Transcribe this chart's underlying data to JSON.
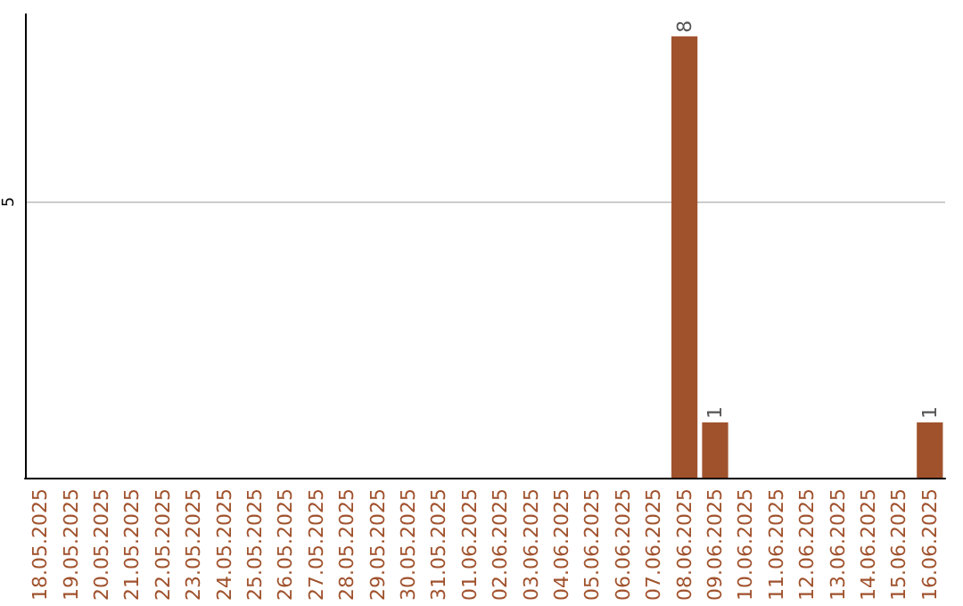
{
  "chart_data": {
    "type": "bar",
    "categories": [
      "18.05.2025",
      "19.05.2025",
      "20.05.2025",
      "21.05.2025",
      "22.05.2025",
      "23.05.2025",
      "24.05.2025",
      "25.05.2025",
      "26.05.2025",
      "27.05.2025",
      "28.05.2025",
      "29.05.2025",
      "30.05.2025",
      "31.05.2025",
      "01.06.2025",
      "02.06.2025",
      "03.06.2025",
      "04.06.2025",
      "05.06.2025",
      "06.06.2025",
      "07.06.2025",
      "08.06.2025",
      "09.06.2025",
      "10.06.2025",
      "11.06.2025",
      "12.06.2025",
      "13.06.2025",
      "14.06.2025",
      "15.06.2025",
      "16.06.2025"
    ],
    "values": [
      null,
      null,
      null,
      null,
      null,
      null,
      null,
      null,
      null,
      null,
      null,
      null,
      null,
      null,
      null,
      null,
      null,
      null,
      null,
      null,
      null,
      8,
      1,
      null,
      null,
      null,
      null,
      null,
      null,
      1
    ],
    "data_labels": true,
    "color": "#a0522d",
    "ylim": [
      0,
      8.4
    ],
    "yticks": [
      5
    ],
    "grid": "y"
  }
}
